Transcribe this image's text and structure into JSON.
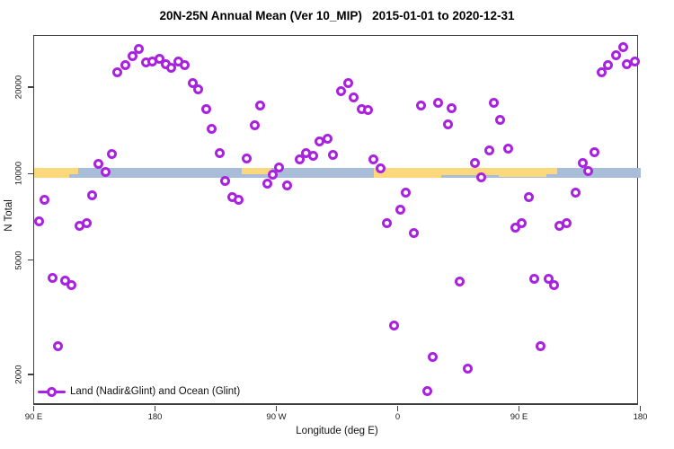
{
  "title": "20N-25N Annual Mean (Ver 10_MIP)   2015-01-01 to 2020-12-31",
  "legend": {
    "label": "Land (Nadir&Glint) and Ocean (Glint)"
  },
  "colors": {
    "marker": "#a822e0",
    "land": "#fcd87d",
    "ocean": "#a9bdd8",
    "axis": "#404040"
  },
  "chart_data": {
    "type": "scatter",
    "title": "20N-25N Annual Mean (Ver 10_MIP)   2015-01-01 to 2020-12-31",
    "xlabel": "Longitude (deg E)",
    "ylabel": "N Total",
    "y_scale": "log",
    "ylim": [
      1550,
      30000
    ],
    "x_axis_deg_from_start": [
      0,
      450
    ],
    "x_ticks": [
      {
        "t": 0,
        "label": "90 E"
      },
      {
        "t": 90,
        "label": "180"
      },
      {
        "t": 180,
        "label": "90 W"
      },
      {
        "t": 270,
        "label": "0"
      },
      {
        "t": 360,
        "label": "90 E"
      },
      {
        "t": 450,
        "label": "180"
      }
    ],
    "y_ticks": [
      {
        "n": 2000,
        "label": "2000"
      },
      {
        "n": 5000,
        "label": "5000"
      },
      {
        "n": 10000,
        "label": "10000"
      },
      {
        "n": 20000,
        "label": "20000"
      }
    ],
    "legend_entries": [
      "Land (Nadir&Glint) and Ocean (Glint)"
    ],
    "map_band": {
      "n_top": 10500,
      "n_bottom": 9650,
      "ocean_range": [
        0,
        450
      ],
      "land_segments": [
        {
          "t0": 0,
          "t1": 26,
          "frac": 1.0
        },
        {
          "t0": 26,
          "t1": 33,
          "frac": 0.6
        },
        {
          "t0": 154,
          "t1": 176,
          "frac": 0.65
        },
        {
          "t0": 252,
          "t1": 302,
          "frac": 1.0
        },
        {
          "t0": 302,
          "t1": 318,
          "frac": 0.75
        },
        {
          "t0": 318,
          "t1": 345,
          "frac": 0.7
        },
        {
          "t0": 345,
          "t1": 380,
          "frac": 0.9
        },
        {
          "t0": 380,
          "t1": 388,
          "frac": 0.6
        }
      ]
    },
    "points": [
      [
        62,
        22600
      ],
      [
        68,
        23900
      ],
      [
        73,
        25700
      ],
      [
        78,
        27200
      ],
      [
        83,
        24300
      ],
      [
        88,
        24600
      ],
      [
        93,
        25000
      ],
      [
        98,
        24100
      ],
      [
        102,
        23400
      ],
      [
        107,
        24500
      ],
      [
        112,
        23800
      ],
      [
        118,
        20600
      ],
      [
        122,
        19700
      ],
      [
        128,
        16800
      ],
      [
        132,
        14300
      ],
      [
        138,
        11800
      ],
      [
        142,
        9400
      ],
      [
        147,
        8300
      ],
      [
        58,
        11700
      ],
      [
        48,
        10800
      ],
      [
        53,
        10100
      ],
      [
        8,
        8100
      ],
      [
        43,
        8400
      ],
      [
        39,
        6700
      ],
      [
        34,
        6600
      ],
      [
        4,
        6800
      ],
      [
        168,
        17300
      ],
      [
        164,
        14700
      ],
      [
        233,
        20700
      ],
      [
        228,
        19300
      ],
      [
        237,
        18400
      ],
      [
        243,
        16800
      ],
      [
        248,
        16700
      ],
      [
        287,
        17300
      ],
      [
        300,
        17600
      ],
      [
        218,
        13200
      ],
      [
        212,
        12900
      ],
      [
        207,
        11500
      ],
      [
        202,
        11800
      ],
      [
        197,
        11200
      ],
      [
        222,
        11600
      ],
      [
        252,
        11200
      ],
      [
        257,
        10400
      ],
      [
        182,
        10500
      ],
      [
        177,
        9900
      ],
      [
        173,
        9200
      ],
      [
        188,
        9100
      ],
      [
        158,
        11300
      ],
      [
        152,
        8100
      ],
      [
        276,
        8600
      ],
      [
        272,
        7500
      ],
      [
        262,
        6700
      ],
      [
        437,
        27500
      ],
      [
        432,
        25900
      ],
      [
        426,
        23900
      ],
      [
        421,
        22600
      ],
      [
        440,
        24100
      ],
      [
        446,
        24600
      ],
      [
        310,
        16900
      ],
      [
        307,
        14800
      ],
      [
        341,
        17600
      ],
      [
        346,
        15400
      ],
      [
        338,
        12000
      ],
      [
        352,
        12200
      ],
      [
        327,
        10900
      ],
      [
        332,
        9700
      ],
      [
        416,
        11900
      ],
      [
        407,
        10900
      ],
      [
        411,
        10200
      ],
      [
        367,
        8300
      ],
      [
        402,
        8600
      ],
      [
        362,
        6700
      ],
      [
        357,
        6500
      ],
      [
        395,
        6700
      ],
      [
        390,
        6600
      ],
      [
        282,
        6200
      ],
      [
        267,
        2950
      ],
      [
        296,
        2300
      ],
      [
        292,
        1750
      ],
      [
        316,
        4200
      ],
      [
        371,
        4300
      ],
      [
        382,
        4300
      ],
      [
        386,
        4100
      ],
      [
        376,
        2500
      ],
      [
        322,
        2100
      ],
      [
        14,
        4350
      ],
      [
        23,
        4250
      ],
      [
        28,
        4100
      ],
      [
        18,
        2500
      ]
    ]
  }
}
